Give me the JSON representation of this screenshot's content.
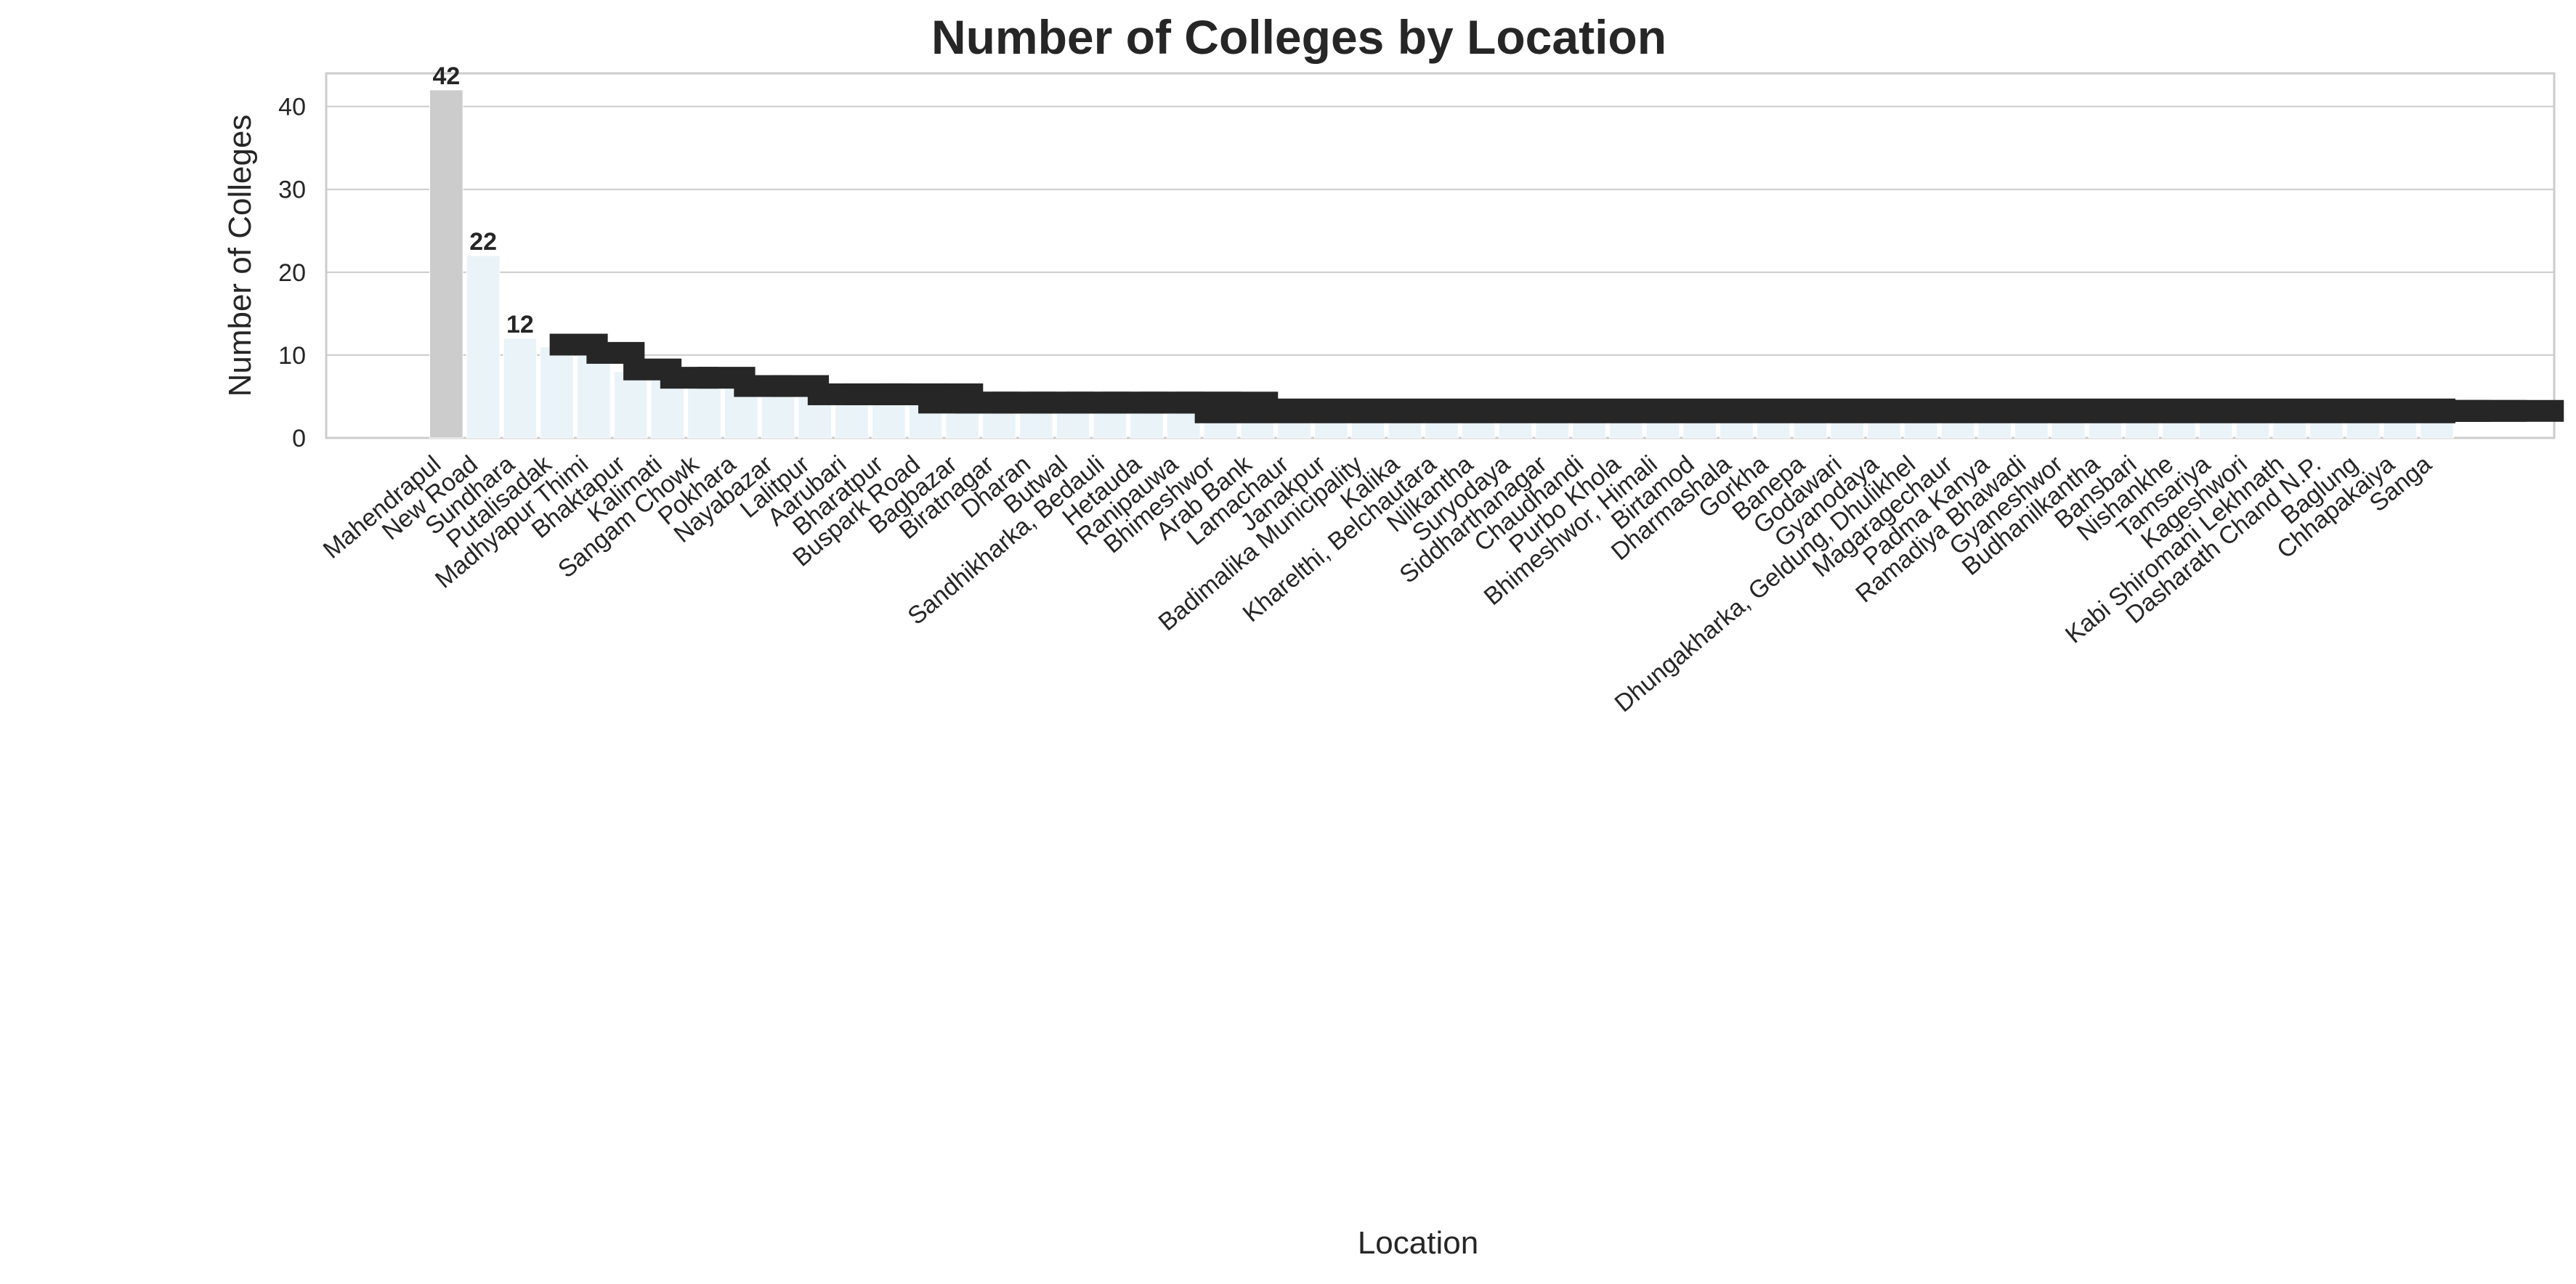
{
  "chart_data": {
    "type": "bar",
    "title": "Number of Colleges by Location",
    "xlabel": "Location",
    "ylabel": "Number of Colleges",
    "ylim": [
      0,
      44
    ],
    "yticks": [
      0,
      10,
      20,
      30,
      40
    ],
    "grid": true,
    "legend": "none",
    "background": "#cccccc",
    "colors": {
      "bar": "#cccccc",
      "bar_light": "#eaf3f8",
      "label_box": "#262626",
      "grid": "#cccccc",
      "axes_border": "#cccccc"
    },
    "categories": [
      "Mahendrapul",
      "New Road",
      "Sundhara",
      "Putalisadak",
      "Madhyapur Thimi",
      "Bhaktapur",
      "Kalimati",
      "Sangam Chowk",
      "Pokhara",
      "Nayabazar",
      "Lalitpur",
      "Aarubari",
      "Bharatpur",
      "Buspark Road",
      "Bagbazar",
      "Biratnagar",
      "Dharan",
      "Butwal",
      "Sandhikharka, Bedauli",
      "Hetauda",
      "Ranipauwa",
      "Bhimeshwor",
      "Arab Bank",
      "Lamachaur",
      "Janakpur",
      "Badimalika Municipality",
      "Kalika",
      "Kharelthi, Belchautara",
      "Nilkantha",
      "Suryodaya",
      "Siddharthanagar",
      "Chaudhandi",
      "Purbo Khola",
      "Bhimeshwor, Himali",
      "Birtamod",
      "Dharmashala",
      "Gorkha",
      "Banepa",
      "Godawari",
      "Gyanodaya",
      "Dhungakharka, Geldung, Dhulikhel",
      "Magaragechaur",
      "Padma Kanya",
      "Ramadiya Bhawadi",
      "Gyaneshwor",
      "Budhanilkantha",
      "Bansbari",
      "Nishankhe",
      "Tamsariya",
      "Kageshwori",
      "Kabi Shiromani Lekhnath",
      "Dasharath Chand N.P.",
      "Baglung",
      "Chhapakaiya",
      "Sanga"
    ],
    "values": [
      42,
      22,
      12,
      11,
      10,
      8,
      7,
      7,
      6,
      6,
      5,
      5,
      5,
      4,
      4,
      4,
      4,
      4,
      4,
      4,
      4,
      3,
      3,
      3,
      3,
      3,
      3,
      3,
      3,
      3,
      3,
      3,
      3,
      3,
      3,
      3,
      3,
      3,
      3,
      3,
      3,
      3,
      3,
      3,
      3,
      3,
      3,
      3,
      3,
      3,
      3,
      3,
      3,
      3,
      3
    ]
  }
}
